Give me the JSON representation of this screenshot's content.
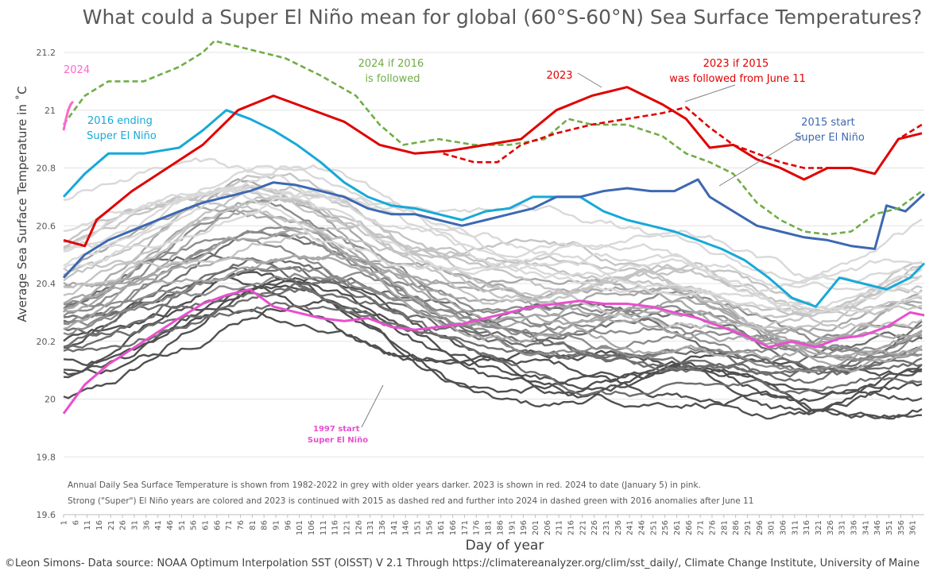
{
  "chart_data": {
    "type": "line",
    "title": "What could a Super El Niño mean for global (60°S-60°N) Sea Surface Temperatures?",
    "xlabel": "Day of year",
    "ylabel": "Average Sea Surface Temperature in ˚C",
    "xlim": [
      1,
      366
    ],
    "ylim": [
      19.6,
      21.2
    ],
    "yticks": [
      19.6,
      19.8,
      20,
      20.2,
      20.4,
      20.6,
      20.8,
      21,
      21.2
    ],
    "ytick_labels": [
      "19.6",
      "19.8",
      "20",
      "20.2",
      "20.4",
      "20.6",
      "20.8",
      "21",
      "21.2"
    ],
    "xticks": [
      1,
      6,
      11,
      16,
      21,
      26,
      31,
      36,
      41,
      46,
      51,
      56,
      61,
      66,
      71,
      76,
      81,
      86,
      91,
      96,
      101,
      106,
      111,
      116,
      121,
      126,
      131,
      136,
      141,
      146,
      151,
      156,
      161,
      166,
      171,
      176,
      181,
      186,
      191,
      196,
      201,
      206,
      211,
      216,
      221,
      226,
      231,
      236,
      241,
      246,
      251,
      256,
      261,
      266,
      271,
      276,
      281,
      286,
      291,
      296,
      301,
      306,
      311,
      316,
      321,
      326,
      331,
      336,
      341,
      346,
      351,
      356,
      361
    ],
    "xtick_labels": [
      "1",
      "6",
      "11",
      "16",
      "21",
      "26",
      "31",
      "36",
      "41",
      "46",
      "51",
      "56",
      "61",
      "66",
      "71",
      "76",
      "81",
      "86",
      "91",
      "96",
      "101",
      "106",
      "111",
      "116",
      "121",
      "126",
      "131",
      "136",
      "141",
      "146",
      "151",
      "156",
      "161",
      "166",
      "171",
      "176",
      "181",
      "186",
      "191",
      "196",
      "201",
      "206",
      "211",
      "216",
      "221",
      "226",
      "231",
      "236",
      "241",
      "246",
      "251",
      "256",
      "261",
      "266",
      "271",
      "276",
      "281",
      "286",
      "291",
      "296",
      "301",
      "306",
      "311",
      "316",
      "321",
      "326",
      "331",
      "336",
      "341",
      "346",
      "351",
      "356",
      "361"
    ],
    "grid": "horizontal",
    "series": [
      {
        "name": "2023",
        "color": "#e00000",
        "dash": false,
        "x": [
          1,
          10,
          15,
          30,
          45,
          60,
          75,
          90,
          100,
          110,
          120,
          135,
          150,
          165,
          180,
          195,
          210,
          225,
          240,
          255,
          265,
          275,
          285,
          295,
          305,
          315,
          325,
          335,
          345,
          355,
          365
        ],
        "y": [
          20.55,
          20.53,
          20.62,
          20.72,
          20.8,
          20.88,
          21.0,
          21.05,
          21.02,
          20.99,
          20.96,
          20.88,
          20.85,
          20.86,
          20.88,
          20.9,
          21.0,
          21.05,
          21.08,
          21.02,
          20.97,
          20.87,
          20.88,
          20.83,
          20.8,
          20.76,
          20.8,
          20.8,
          20.78,
          20.9,
          20.92
        ]
      },
      {
        "name": "2023 if 2015 was followed from June 11",
        "color": "#e00000",
        "dash": true,
        "x": [
          162,
          175,
          185,
          195,
          210,
          225,
          240,
          255,
          265,
          275,
          285,
          295,
          305,
          315,
          325,
          335,
          345,
          355,
          365
        ],
        "y": [
          20.85,
          20.82,
          20.82,
          20.88,
          20.92,
          20.95,
          20.97,
          20.99,
          21.01,
          20.94,
          20.88,
          20.85,
          20.82,
          20.8,
          20.8,
          20.8,
          20.78,
          20.9,
          20.95
        ]
      },
      {
        "name": "2024 if 2016 is followed",
        "color": "#70ad47",
        "dash": true,
        "x": [
          1,
          10,
          20,
          35,
          50,
          60,
          65,
          75,
          85,
          95,
          110,
          125,
          135,
          145,
          160,
          175,
          190,
          205,
          215,
          225,
          240,
          255,
          265,
          275,
          285,
          295,
          305,
          315,
          325,
          335,
          345,
          355,
          365
        ],
        "y": [
          20.95,
          21.05,
          21.1,
          21.1,
          21.15,
          21.2,
          21.24,
          21.22,
          21.2,
          21.18,
          21.12,
          21.05,
          20.95,
          20.88,
          20.9,
          20.88,
          20.88,
          20.9,
          20.97,
          20.95,
          20.95,
          20.91,
          20.85,
          20.82,
          20.78,
          20.68,
          20.62,
          20.58,
          20.57,
          20.58,
          20.64,
          20.66,
          20.72
        ]
      },
      {
        "name": "2016 ending Super El Niño",
        "color": "#17a9d8",
        "dash": false,
        "x": [
          1,
          10,
          20,
          35,
          50,
          60,
          70,
          80,
          90,
          100,
          110,
          120,
          130,
          140,
          150,
          160,
          170,
          180,
          190,
          200,
          210,
          220,
          230,
          240,
          250,
          260,
          270,
          280,
          290,
          300,
          310,
          320,
          330,
          340,
          350,
          360,
          366
        ],
        "y": [
          20.7,
          20.78,
          20.85,
          20.85,
          20.87,
          20.93,
          21.0,
          20.97,
          20.93,
          20.88,
          20.82,
          20.75,
          20.7,
          20.67,
          20.66,
          20.64,
          20.62,
          20.65,
          20.66,
          20.7,
          20.7,
          20.7,
          20.65,
          20.62,
          20.6,
          20.58,
          20.55,
          20.52,
          20.48,
          20.42,
          20.35,
          20.32,
          20.42,
          20.4,
          20.38,
          20.42,
          20.47
        ]
      },
      {
        "name": "2015 start Super El Niño",
        "color": "#3d68b2",
        "dash": false,
        "x": [
          1,
          10,
          20,
          35,
          50,
          60,
          70,
          80,
          90,
          100,
          110,
          120,
          130,
          140,
          150,
          160,
          170,
          180,
          190,
          200,
          210,
          220,
          230,
          240,
          250,
          260,
          270,
          275,
          285,
          295,
          305,
          315,
          325,
          335,
          345,
          350,
          358,
          366
        ],
        "y": [
          20.42,
          20.5,
          20.55,
          20.6,
          20.65,
          20.68,
          20.7,
          20.72,
          20.75,
          20.74,
          20.72,
          20.7,
          20.66,
          20.64,
          20.64,
          20.62,
          20.6,
          20.62,
          20.64,
          20.66,
          20.7,
          20.7,
          20.72,
          20.73,
          20.72,
          20.72,
          20.76,
          20.7,
          20.65,
          20.6,
          20.58,
          20.56,
          20.55,
          20.53,
          20.52,
          20.67,
          20.65,
          20.71
        ]
      },
      {
        "name": "2024",
        "color": "#ff66cc",
        "dash": false,
        "x": [
          1,
          2,
          3,
          4,
          5
        ],
        "y": [
          20.93,
          20.97,
          21.0,
          21.02,
          21.03
        ]
      },
      {
        "name": "1997 start Super El Niño",
        "color": "#e94fcf",
        "dash": false,
        "x": [
          1,
          10,
          20,
          35,
          50,
          60,
          70,
          80,
          90,
          100,
          110,
          120,
          130,
          140,
          150,
          160,
          170,
          180,
          190,
          200,
          210,
          220,
          230,
          240,
          250,
          260,
          270,
          280,
          290,
          300,
          310,
          320,
          330,
          340,
          350,
          360,
          366
        ],
        "y": [
          19.95,
          20.05,
          20.12,
          20.2,
          20.28,
          20.33,
          20.36,
          20.38,
          20.32,
          20.3,
          20.28,
          20.27,
          20.28,
          20.25,
          20.24,
          20.25,
          20.26,
          20.28,
          20.3,
          20.32,
          20.33,
          20.34,
          20.33,
          20.33,
          20.32,
          20.3,
          20.28,
          20.25,
          20.22,
          20.18,
          20.2,
          20.18,
          20.21,
          20.22,
          20.25,
          20.3,
          20.29
        ]
      }
    ],
    "annotations": [
      {
        "text": "2024",
        "color": "#ff66cc"
      },
      {
        "text": "2024 if 2016 is followed",
        "color": "#70ad47"
      },
      {
        "text": "2023",
        "color": "#e00000"
      },
      {
        "text": "2023 if 2015 was followed from June 11",
        "color": "#e00000"
      },
      {
        "text": "2016 ending Super El Niño",
        "color": "#17a9d8"
      },
      {
        "text": "2015 start Super El Niño",
        "color": "#3d68b2"
      },
      {
        "text": "1997 start Super El Niño",
        "color": "#e94fcf"
      }
    ],
    "background_years": "1982-2022",
    "background_colors": [
      "#505050",
      "#6e6e6e",
      "#8c8c8c",
      "#a8a8a8",
      "#c4c4c4",
      "#d9d9d9"
    ]
  },
  "labels": {
    "anno_2024": "2024",
    "anno_2024_if_2016_line1": "2024 if 2016",
    "anno_2024_if_2016_line2": "is followed",
    "anno_2023": "2023",
    "anno_2023_if_2015_line1": "2023 if 2015",
    "anno_2023_if_2015_line2": "was followed from June 11",
    "anno_2016_line1": "2016 ending",
    "anno_2016_line2": "Super El Niño",
    "anno_2015_line1": "2015 start",
    "anno_2015_line2": "Super El Niño",
    "anno_1997_line1": "1997 start",
    "anno_1997_line2": "Super El Niño"
  },
  "notes": {
    "line1": "Annual Daily Sea Surface Temperature is shown from 1982-2022 in grey with older years darker. 2023 is shown in red. 2024 to date (January 5) in pink.",
    "line2": "Strong (\"Super\") El Niño years are colored and 2023 is continued with 2015 as dashed red and further into 2024 in dashed green with 2016 anomalies after June 11"
  },
  "credit": "©Leon Simons- Data source: NOAA Optimum Interpolation SST (OISST) V 2.1 Through https://climatereanalyzer.org/clim/sst_daily/, Climate Change Institute, University of Maine"
}
